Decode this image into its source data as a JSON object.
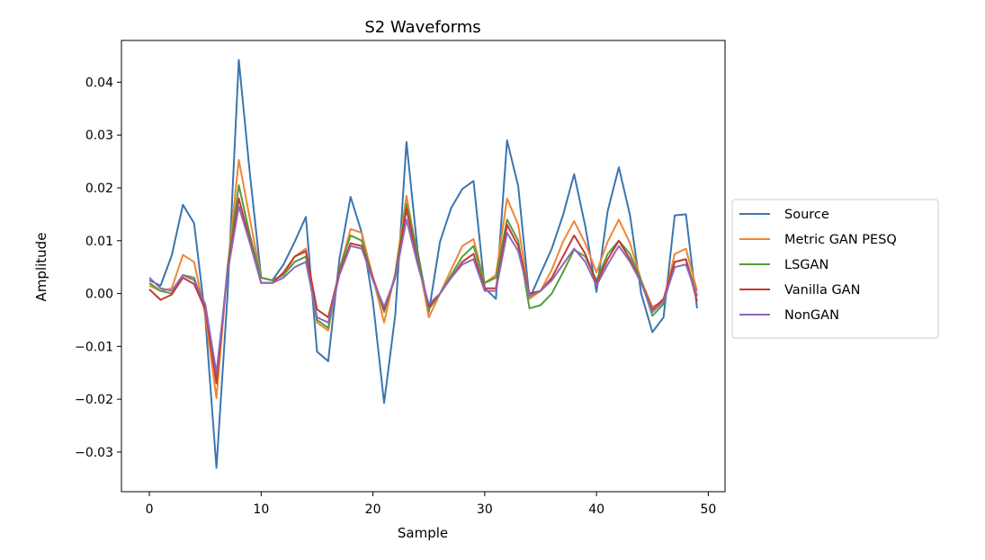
{
  "chart_data": {
    "type": "line",
    "title": "S2 Waveforms",
    "xlabel": "Sample",
    "ylabel": "Amplitude",
    "xlim": [
      -2.5,
      51.5
    ],
    "ylim": [
      -0.0375,
      0.0479
    ],
    "xticks": [
      0,
      10,
      20,
      30,
      40,
      50
    ],
    "xtick_labels": [
      "0",
      "10",
      "20",
      "30",
      "40",
      "50"
    ],
    "yticks": [
      -0.03,
      -0.02,
      -0.01,
      0.0,
      0.01,
      0.02,
      0.03,
      0.04
    ],
    "ytick_labels": [
      "−0.03",
      "−0.02",
      "−0.01",
      "0.00",
      "0.01",
      "0.02",
      "0.03",
      "0.04"
    ],
    "grid": false,
    "legend_position": "outside-right",
    "x": [
      0,
      1,
      2,
      3,
      4,
      5,
      6,
      7,
      8,
      9,
      10,
      11,
      12,
      13,
      14,
      15,
      16,
      17,
      18,
      19,
      20,
      21,
      22,
      23,
      24,
      25,
      26,
      27,
      28,
      29,
      30,
      31,
      32,
      33,
      34,
      35,
      36,
      37,
      38,
      39,
      40,
      41,
      42,
      43,
      44,
      45,
      46,
      47,
      48,
      49
    ],
    "series": [
      {
        "name": "Source",
        "color": "#3b75af",
        "values": [
          0.0025,
          0.0015,
          0.0072,
          0.0168,
          0.0133,
          -0.0045,
          -0.033,
          0.0,
          0.0442,
          0.0225,
          0.003,
          0.0025,
          0.0055,
          0.0098,
          0.0145,
          -0.011,
          -0.0128,
          0.0065,
          0.0183,
          0.0115,
          -0.0015,
          -0.0207,
          -0.004,
          0.0287,
          0.008,
          -0.0035,
          0.0098,
          0.0162,
          0.0198,
          0.0213,
          0.001,
          -0.001,
          0.029,
          0.0203,
          -0.001,
          0.0038,
          0.0085,
          0.0148,
          0.0226,
          0.0127,
          0.0003,
          0.0156,
          0.0239,
          0.0148,
          0.0,
          -0.0073,
          -0.0045,
          0.0148,
          0.015,
          -0.0028
        ]
      },
      {
        "name": "Metric GAN PESQ",
        "color": "#ef8636",
        "values": [
          0.0015,
          0.0005,
          0.001,
          0.0073,
          0.006,
          -0.004,
          -0.0198,
          0.005,
          0.0253,
          0.014,
          0.003,
          0.0025,
          0.0035,
          0.007,
          0.0085,
          -0.0055,
          -0.007,
          0.0045,
          0.0122,
          0.0115,
          0.003,
          -0.0055,
          0.004,
          0.0185,
          0.007,
          -0.0045,
          0.0,
          0.0045,
          0.009,
          0.0103,
          0.002,
          0.0035,
          0.018,
          0.013,
          -0.001,
          0.0005,
          0.0045,
          0.0098,
          0.0137,
          0.0095,
          0.004,
          0.0098,
          0.014,
          0.0095,
          0.0025,
          -0.0025,
          -0.0015,
          0.0075,
          0.0085,
          0.0005
        ]
      },
      {
        "name": "LSGAN",
        "color": "#519e3e",
        "values": [
          0.002,
          0.0005,
          0.0,
          0.0035,
          0.003,
          -0.003,
          -0.0165,
          0.005,
          0.0205,
          0.011,
          0.003,
          0.0025,
          0.0035,
          0.006,
          0.007,
          -0.005,
          -0.0065,
          0.0045,
          0.011,
          0.01,
          0.003,
          -0.0035,
          0.0035,
          0.017,
          0.0075,
          -0.003,
          0.0,
          0.0035,
          0.007,
          0.009,
          0.002,
          0.003,
          0.014,
          0.01,
          -0.0028,
          -0.0022,
          0.0,
          0.004,
          0.0083,
          0.007,
          0.0025,
          0.0075,
          0.01,
          0.0075,
          0.0025,
          -0.0042,
          -0.002,
          0.006,
          0.0065,
          -0.0005
        ]
      },
      {
        "name": "Vanilla GAN",
        "color": "#c53a32",
        "values": [
          0.0008,
          -0.0012,
          -0.0002,
          0.003,
          0.0018,
          -0.003,
          -0.017,
          0.0045,
          0.018,
          0.01,
          0.002,
          0.002,
          0.004,
          0.007,
          0.008,
          -0.003,
          -0.0045,
          0.004,
          0.0095,
          0.009,
          0.003,
          -0.003,
          0.003,
          0.016,
          0.006,
          -0.0025,
          0.0,
          0.003,
          0.006,
          0.0075,
          0.001,
          0.001,
          0.013,
          0.009,
          0.0,
          0.0005,
          0.003,
          0.007,
          0.011,
          0.0075,
          0.002,
          0.0065,
          0.01,
          0.0065,
          0.002,
          -0.003,
          -0.001,
          0.006,
          0.0065,
          -0.0015
        ]
      },
      {
        "name": "NonGAN",
        "color": "#8d69b8",
        "values": [
          0.003,
          0.001,
          0.0005,
          0.0035,
          0.0025,
          -0.002,
          -0.015,
          0.004,
          0.0165,
          0.0095,
          0.002,
          0.002,
          0.003,
          0.005,
          0.006,
          -0.0045,
          -0.0055,
          0.0035,
          0.009,
          0.0085,
          0.0025,
          -0.0025,
          0.003,
          0.014,
          0.0055,
          -0.002,
          0.0,
          0.003,
          0.0055,
          0.0065,
          0.0005,
          0.0005,
          0.0115,
          0.008,
          -0.0005,
          0.0005,
          0.0025,
          0.0055,
          0.0085,
          0.006,
          0.0015,
          0.0055,
          0.009,
          0.006,
          0.002,
          -0.0035,
          -0.0015,
          0.005,
          0.0055,
          -0.0005
        ]
      }
    ]
  }
}
